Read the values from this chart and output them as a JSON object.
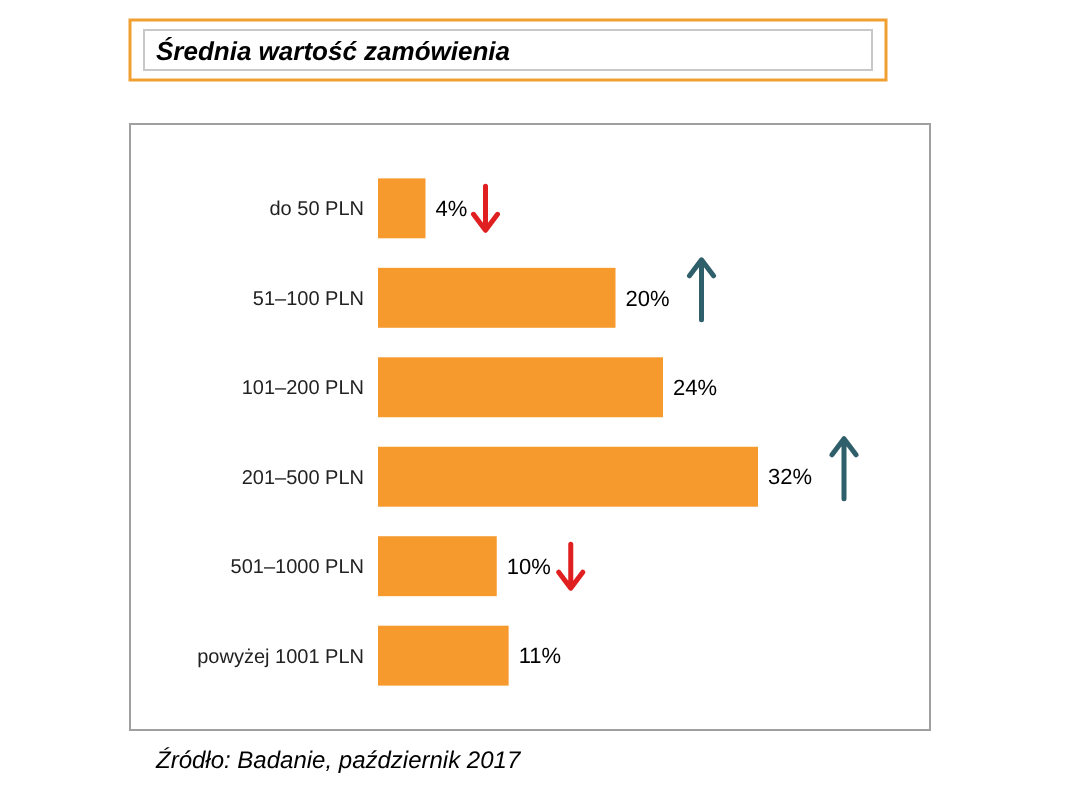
{
  "chart_data": {
    "type": "bar",
    "orientation": "horizontal",
    "title": "Średnia wartość zamówienia",
    "categories": [
      "do 50 PLN",
      "51–100 PLN",
      "101–200 PLN",
      "201–500 PLN",
      "501–1000 PLN",
      "powyżej 1001 PLN"
    ],
    "values": [
      4,
      20,
      24,
      32,
      10,
      11
    ],
    "color": "#f79a2e",
    "value_labels": [
      "4%",
      "20%",
      "24%",
      "32%",
      "10%",
      "11%"
    ],
    "annotations": [
      "Źródło: Badanie, październik 2017"
    ]
  }
}
